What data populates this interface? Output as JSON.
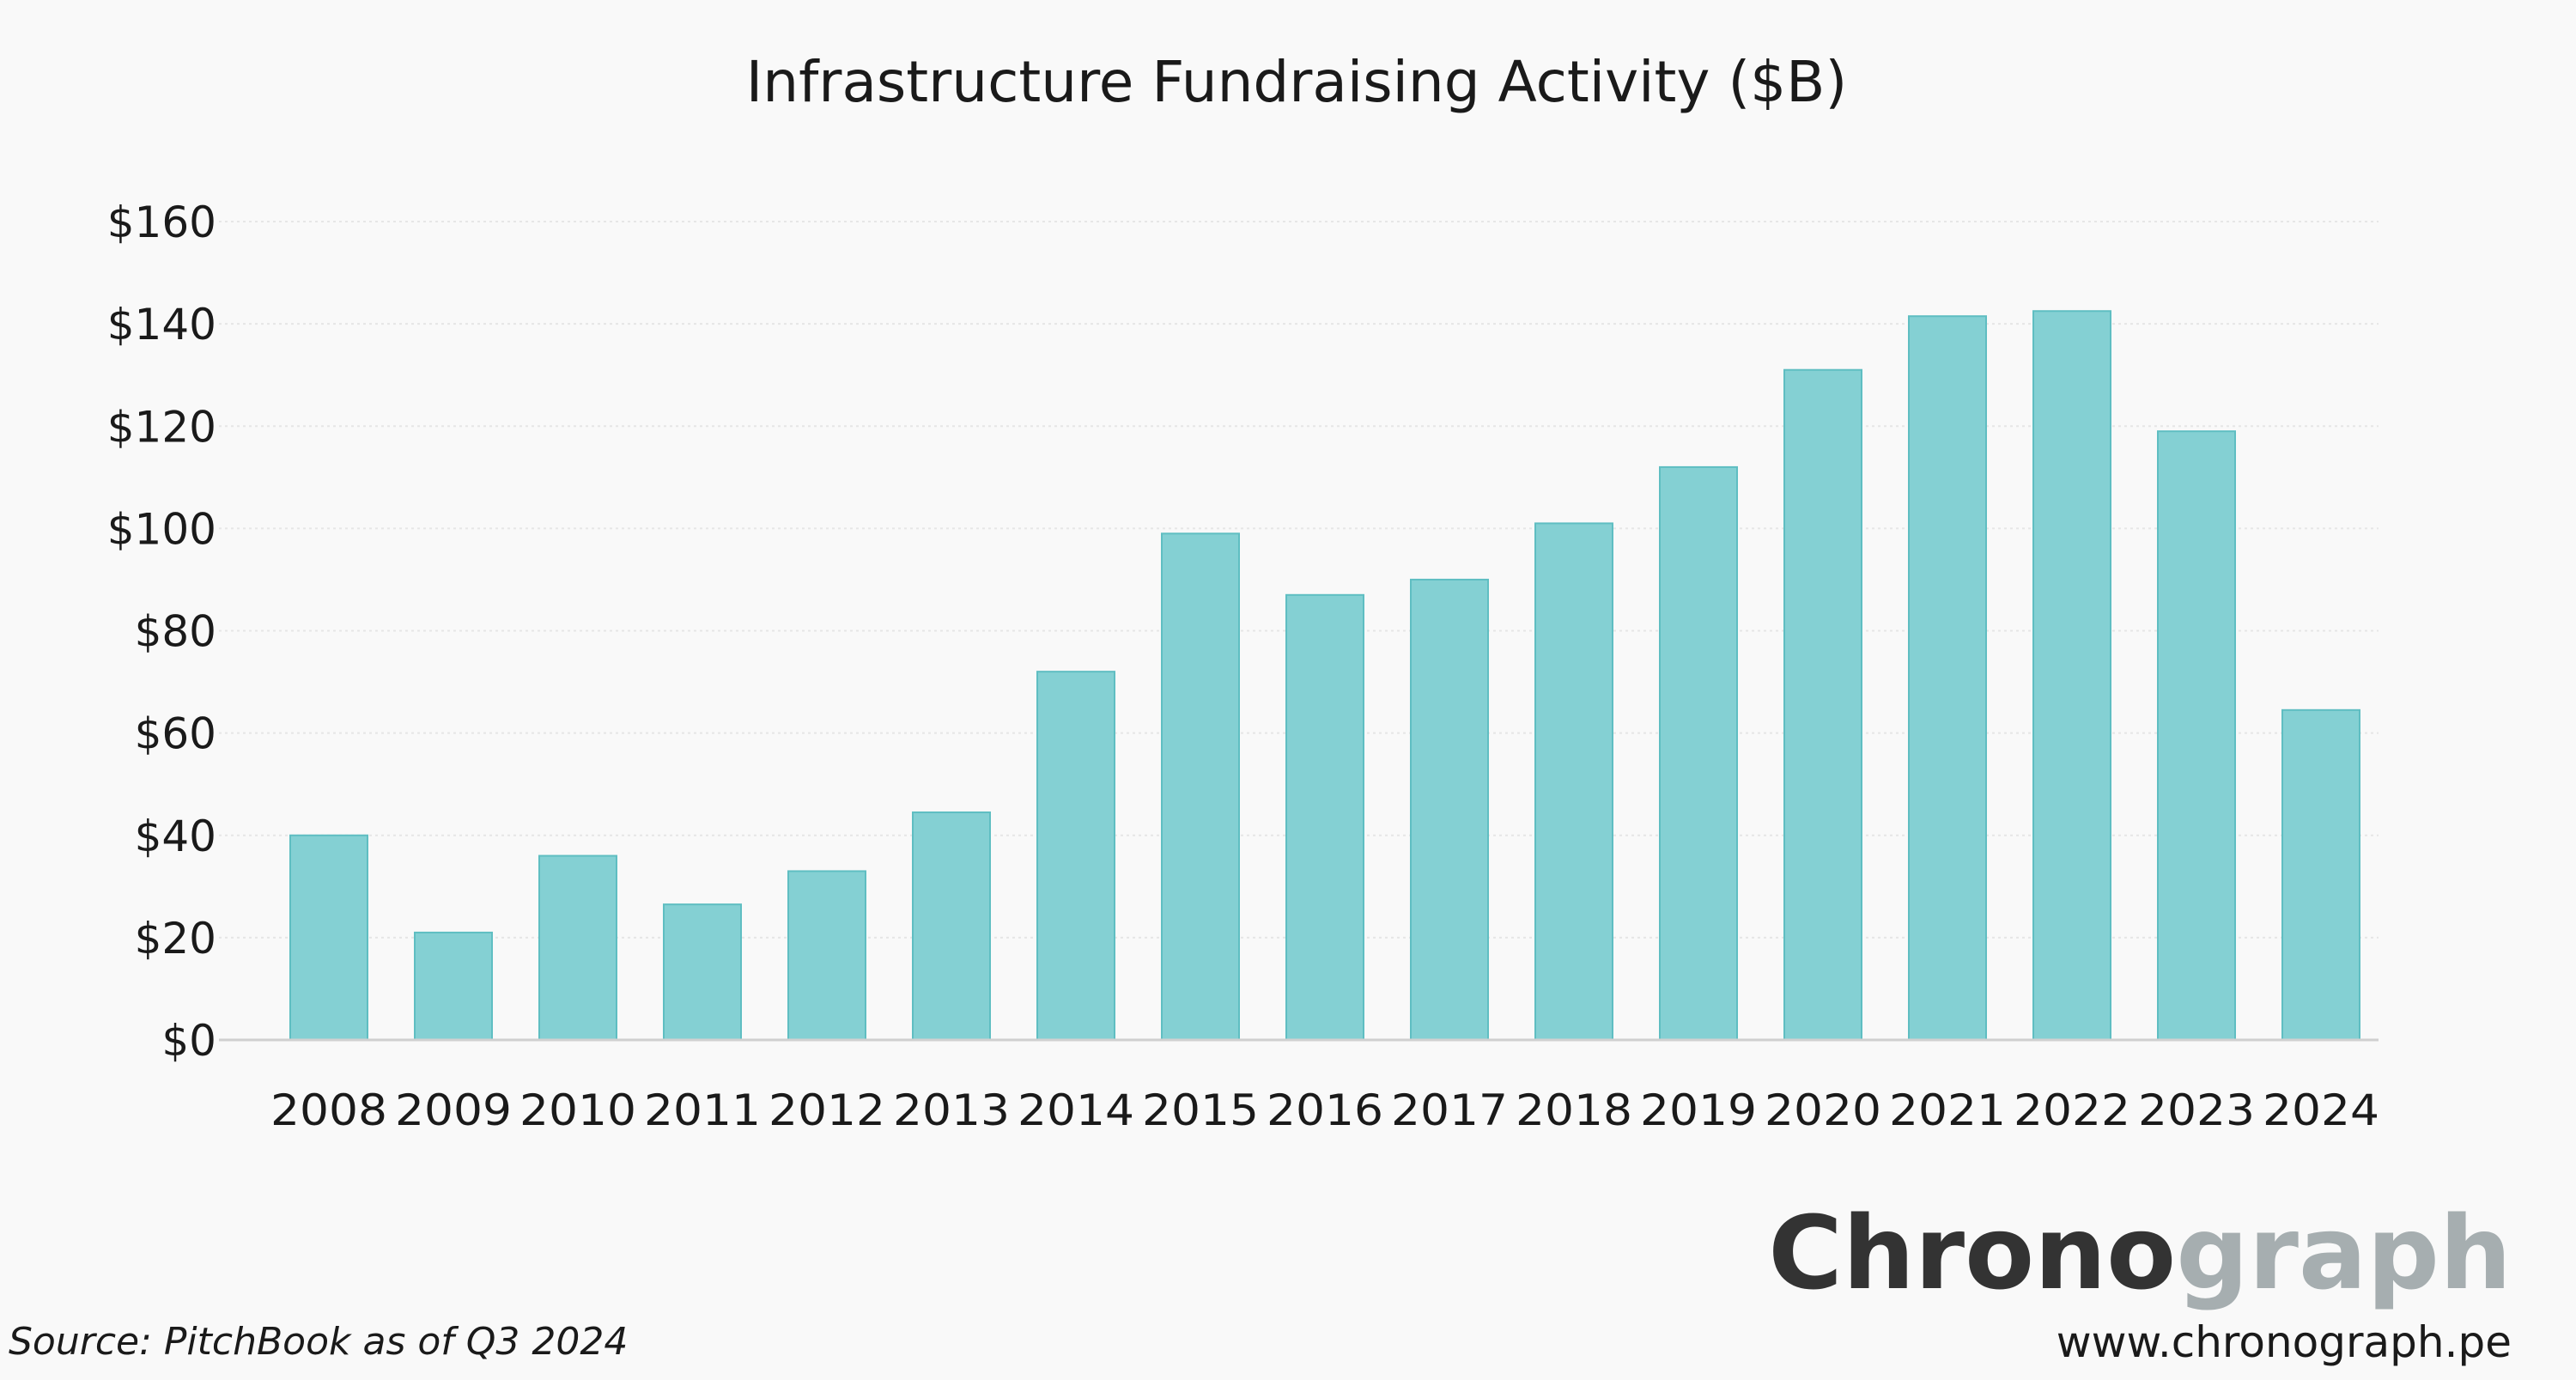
{
  "chart_data": {
    "type": "bar",
    "title": "Infrastructure Fundraising Activity ($B)",
    "xlabel": "",
    "ylabel": "",
    "categories": [
      "2008",
      "2009",
      "2010",
      "2011",
      "2012",
      "2013",
      "2014",
      "2015",
      "2016",
      "2017",
      "2018",
      "2019",
      "2020",
      "2021",
      "2022",
      "2023",
      "2024"
    ],
    "values": [
      40,
      21,
      36,
      26.5,
      33,
      44.5,
      72,
      99,
      87,
      90,
      101,
      112,
      131,
      141.5,
      142.5,
      119,
      64.5
    ],
    "ylim": [
      0,
      160
    ],
    "yticks": [
      0,
      20,
      40,
      60,
      80,
      100,
      120,
      140,
      160
    ],
    "ytick_labels": [
      "$0",
      "$20",
      "$40",
      "$60",
      "$80",
      "$100",
      "$120",
      "$140",
      "$160"
    ],
    "grid": true,
    "bar_color": "#84d0d3",
    "bar_edge_color": "#5fbec2"
  },
  "source_note": "Source: PitchBook as of Q3 2024",
  "brand": {
    "logo_part1": "Chrono",
    "logo_part2": "graph",
    "logo_color1": "#333333",
    "logo_color2": "#a6aeb0",
    "url": "www.chronograph.pe"
  }
}
